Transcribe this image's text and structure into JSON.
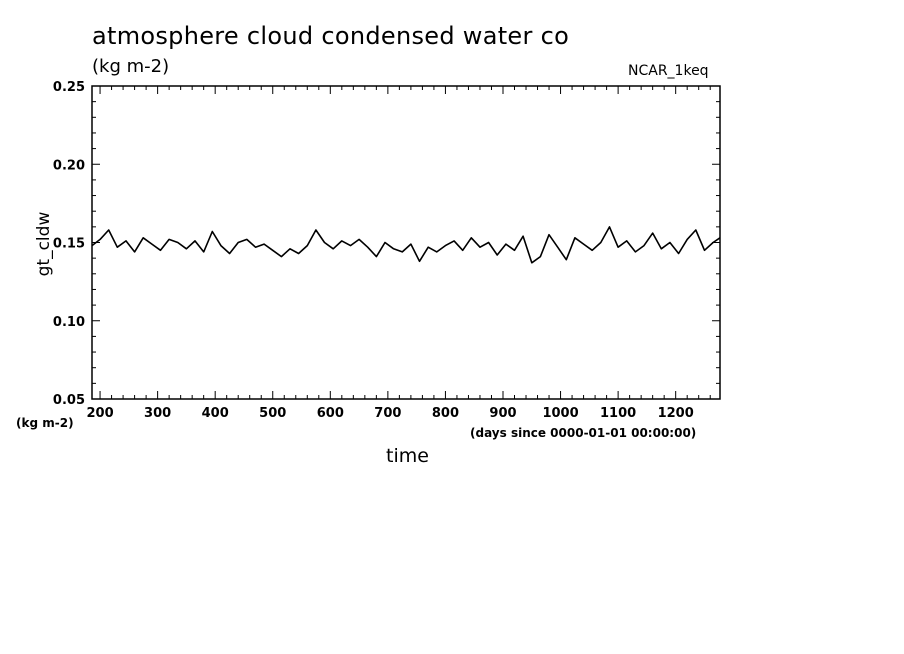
{
  "chart_data": {
    "type": "line",
    "title": "atmosphere cloud condensed water co",
    "subtitle": "(kg m-2)",
    "label_right": "NCAR_1keq",
    "xlabel": "time",
    "x_units": "(days since 0000-01-01 00:00:00)",
    "ylabel": "gt_cldw",
    "y_units": "(kg m-2)",
    "xlim": [
      186,
      1277
    ],
    "ylim": [
      0.05,
      0.25
    ],
    "x_ticks": [
      200,
      300,
      400,
      500,
      600,
      700,
      800,
      900,
      1000,
      1100,
      1200
    ],
    "y_ticks": [
      "0.05",
      "0.10",
      "0.15",
      "0.20",
      "0.25"
    ],
    "grid": false,
    "series_color": "#000000",
    "series": [
      {
        "x": [
          186,
          200,
          215,
          230,
          245,
          260,
          275,
          290,
          305,
          320,
          335,
          350,
          365,
          380,
          395,
          410,
          425,
          440,
          455,
          470,
          485,
          500,
          515,
          530,
          545,
          560,
          575,
          590,
          605,
          620,
          635,
          650,
          665,
          680,
          695,
          710,
          725,
          740,
          755,
          770,
          785,
          800,
          815,
          830,
          845,
          860,
          875,
          890,
          905,
          920,
          935,
          950,
          965,
          980,
          995,
          1010,
          1025,
          1040,
          1055,
          1070,
          1085,
          1100,
          1115,
          1130,
          1145,
          1160,
          1175,
          1190,
          1205,
          1220,
          1235,
          1250,
          1265,
          1277
        ],
        "y": [
          0.148,
          0.152,
          0.158,
          0.147,
          0.151,
          0.144,
          0.153,
          0.149,
          0.145,
          0.152,
          0.15,
          0.146,
          0.151,
          0.144,
          0.157,
          0.148,
          0.143,
          0.15,
          0.152,
          0.147,
          0.149,
          0.145,
          0.141,
          0.146,
          0.143,
          0.148,
          0.158,
          0.15,
          0.146,
          0.151,
          0.148,
          0.152,
          0.147,
          0.141,
          0.15,
          0.146,
          0.144,
          0.149,
          0.138,
          0.147,
          0.144,
          0.148,
          0.151,
          0.145,
          0.153,
          0.147,
          0.15,
          0.142,
          0.149,
          0.145,
          0.154,
          0.137,
          0.141,
          0.155,
          0.147,
          0.139,
          0.153,
          0.149,
          0.145,
          0.15,
          0.16,
          0.147,
          0.151,
          0.144,
          0.148,
          0.156,
          0.146,
          0.15,
          0.143,
          0.152,
          0.158,
          0.145,
          0.15,
          0.153
        ]
      }
    ]
  }
}
